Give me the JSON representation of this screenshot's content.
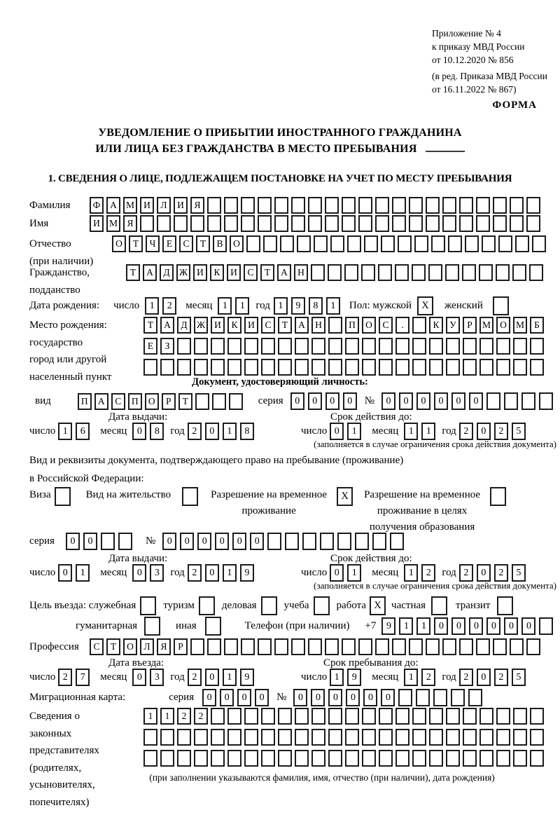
{
  "meta": {
    "appendix_line1": "Приложение № 4",
    "appendix_line2": "к приказу МВД России",
    "appendix_line3": "от 10.12.2020 № 856",
    "revision_line1": "(в ред. Приказа МВД России",
    "revision_line2": "от 16.11.2022 № 867)",
    "form_label": "ФОРМА"
  },
  "title": {
    "line1": "УВЕДОМЛЕНИЕ О ПРИБЫТИИ ИНОСТРАННОГО ГРАЖДАНИНА",
    "line2": "ИЛИ ЛИЦА БЕЗ ГРАЖДАНСТВА В МЕСТО ПРЕБЫВАНИЯ"
  },
  "section1_heading": "1. СВЕДЕНИЯ О ЛИЦЕ, ПОДЛЕЖАЩЕМ ПОСТАНОВКЕ НА УЧЕТ ПО МЕСТУ ПРЕБЫВАНИЯ",
  "person": {
    "surname": {
      "label": "Фамилия",
      "value": "ФАМИЛИЯ",
      "cells": 27
    },
    "firstname": {
      "label": "Имя",
      "value": "ИМЯ",
      "cells": 27
    },
    "patronymic": {
      "label": "Отчество",
      "label_note": "(при наличии)",
      "value": "ОТЧЕСТВО",
      "cells": 26
    },
    "citizenship": {
      "label": "Гражданство,",
      "label2": "подданство",
      "value": "ТАДЖИКИСТАН",
      "cells": 25
    },
    "birth_date": {
      "label": "Дата рождения:",
      "day_label": "число",
      "day": {
        "value": "12",
        "cells": 2
      },
      "month_label": "месяц",
      "month": {
        "value": "11",
        "cells": 2
      },
      "year_label": "год",
      "year": {
        "value": "1981",
        "cells": 4
      }
    },
    "sex": {
      "label": "Пол: мужской",
      "male": {
        "value": "X",
        "cells": 1
      },
      "female_label": "женский",
      "female": {
        "value": "",
        "cells": 1
      }
    },
    "birth_place": {
      "label1": "Место рождения:",
      "label2": "государство",
      "label3": "город или другой",
      "label4": "населенный пункт",
      "row1": {
        "value": "ТАДЖИКИСТАН ПОС. КУРМОМБ",
        "cells": 24
      },
      "row2": {
        "value": "ЕЗ",
        "cells": 24
      },
      "row3": {
        "value": "",
        "cells": 24
      }
    }
  },
  "identity_doc": {
    "heading": "Документ, удостоверяющий личность:",
    "type_label": "вид",
    "type": {
      "value": "ПАСПОРТ",
      "cells": 10
    },
    "series_label": "серия",
    "series": {
      "value": "0000",
      "cells": 4
    },
    "number_label": "№",
    "number": {
      "value": "000000",
      "cells": 10
    },
    "issue_heading": "Дата выдачи:",
    "issue": {
      "day_label": "число",
      "day": {
        "value": "16",
        "cells": 2
      },
      "month_label": "месяц",
      "month": {
        "value": "08",
        "cells": 2
      },
      "year_label": "год",
      "year": {
        "value": "2018",
        "cells": 4
      }
    },
    "expiry_heading": "Срок действия до:",
    "expiry": {
      "day_label": "число",
      "day": {
        "value": "01",
        "cells": 2
      },
      "month_label": "месяц",
      "month": {
        "value": "11",
        "cells": 2
      },
      "year_label": "год",
      "year": {
        "value": "2025",
        "cells": 4
      }
    },
    "note": "(заполняется в случае ограничения срока действия документа)"
  },
  "residence_doc": {
    "intro_line1": "Вид и реквизиты документа, подтверждающего право на пребывание (проживание)",
    "intro_line2": "в Российской Федерации:",
    "visa_label": "Виза",
    "visa": {
      "value": "",
      "cells": 1
    },
    "residence_permit_label": "Вид на жительство",
    "residence_permit": {
      "value": "",
      "cells": 1
    },
    "temp_permit_label1": "Разрешение на временное",
    "temp_permit_label2": "проживание",
    "temp_permit": {
      "value": "X",
      "cells": 1
    },
    "edu_permit_label1": "Разрешение на временное",
    "edu_permit_label2": "проживание в целях",
    "edu_permit_label3": "получения образования",
    "edu_permit": {
      "value": "",
      "cells": 1
    },
    "series_label": "серия",
    "series": {
      "value": "00",
      "cells": 4
    },
    "number_label": "№",
    "number": {
      "value": "000000",
      "cells": 14
    },
    "issue_heading": "Дата выдачи:",
    "issue": {
      "day_label": "число",
      "day": {
        "value": "01",
        "cells": 2
      },
      "month_label": "месяц",
      "month": {
        "value": "03",
        "cells": 2
      },
      "year_label": "год",
      "year": {
        "value": "2019",
        "cells": 4
      }
    },
    "expiry_heading": "Срок действия до:",
    "expiry": {
      "day_label": "число",
      "day": {
        "value": "01",
        "cells": 2
      },
      "month_label": "месяц",
      "month": {
        "value": "12",
        "cells": 2
      },
      "year_label": "год",
      "year": {
        "value": "2025",
        "cells": 4
      }
    },
    "note": "(заполняется в случае ограничения срока действия документа)"
  },
  "purpose": {
    "label": "Цель въезда: служебная",
    "official": {
      "value": "",
      "cells": 1
    },
    "tourism_label": "туризм",
    "tourism": {
      "value": "",
      "cells": 1
    },
    "business_label": "деловая",
    "business": {
      "value": "",
      "cells": 1
    },
    "study_label": "учеба",
    "study": {
      "value": "",
      "cells": 1
    },
    "work_label": "работа",
    "work": {
      "value": "X",
      "cells": 1
    },
    "private_label": "частная",
    "private": {
      "value": "",
      "cells": 1
    },
    "transit_label": "транзит",
    "transit": {
      "value": "",
      "cells": 1
    },
    "humanitarian_label": "гуманитарная",
    "humanitarian": {
      "value": "",
      "cells": 1
    },
    "other_label": "иная",
    "other": {
      "value": "",
      "cells": 1
    }
  },
  "phone": {
    "label": "Телефон (при наличии)",
    "prefix": "+7",
    "digits": {
      "value": "911000000",
      "cells": 10
    }
  },
  "profession": {
    "label": "Профессия",
    "value": {
      "value": "СТОЛЯР",
      "cells": 27
    }
  },
  "entry": {
    "date_heading": "Дата въезда:",
    "date": {
      "day_label": "число",
      "day": {
        "value": "27",
        "cells": 2
      },
      "month_label": "месяц",
      "month": {
        "value": "03",
        "cells": 2
      },
      "year_label": "год",
      "year": {
        "value": "2019",
        "cells": 4
      }
    },
    "stay_heading": "Срок пребывания до:",
    "stay": {
      "day_label": "число",
      "day": {
        "value": "19",
        "cells": 2
      },
      "month_label": "месяц",
      "month": {
        "value": "12",
        "cells": 2
      },
      "year_label": "год",
      "year": {
        "value": "2025",
        "cells": 4
      }
    }
  },
  "migration_card": {
    "label": "Миграционная карта:",
    "series_label": "серия",
    "series": {
      "value": "0000",
      "cells": 4
    },
    "number_label": "№",
    "number": {
      "value": "000000",
      "cells": 11
    }
  },
  "representatives": {
    "label_lines": [
      "Сведения о",
      "законных",
      "представителях",
      "(родителях,",
      "усыновителях,",
      "попечителях)"
    ],
    "row1": {
      "value": "1122",
      "cells": 24
    },
    "row2": {
      "value": "",
      "cells": 24
    },
    "row3": {
      "value": "",
      "cells": 24
    },
    "note": "(при заполнении указываются фамилия, имя, отчество (при наличии), дата рождения)"
  }
}
